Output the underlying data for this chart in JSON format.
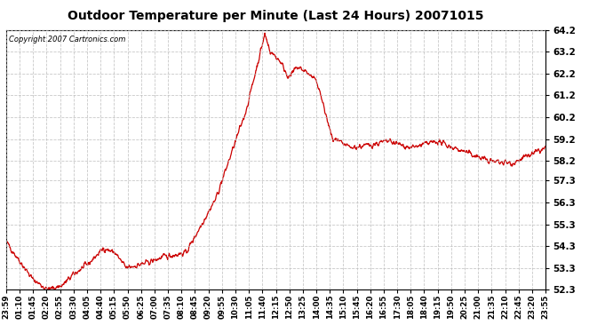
{
  "title": "Outdoor Temperature per Minute (Last 24 Hours) 20071015",
  "copyright_text": "Copyright 2007 Cartronics.com",
  "line_color": "#cc0000",
  "background_color": "#ffffff",
  "plot_bg_color": "#ffffff",
  "grid_color": "#bbbbbb",
  "ylim": [
    52.3,
    64.2
  ],
  "yticks": [
    52.3,
    53.3,
    54.3,
    55.3,
    56.3,
    57.3,
    58.2,
    59.2,
    60.2,
    61.2,
    62.2,
    63.2,
    64.2
  ],
  "xtick_labels": [
    "23:59",
    "01:10",
    "01:45",
    "02:20",
    "02:55",
    "03:30",
    "04:05",
    "04:40",
    "05:15",
    "05:50",
    "06:25",
    "07:00",
    "07:35",
    "08:10",
    "08:45",
    "09:20",
    "09:55",
    "10:30",
    "11:05",
    "11:40",
    "12:15",
    "12:50",
    "13:25",
    "14:00",
    "14:35",
    "15:10",
    "15:45",
    "16:20",
    "16:55",
    "17:30",
    "18:05",
    "18:40",
    "19:15",
    "19:50",
    "20:25",
    "21:00",
    "21:35",
    "22:10",
    "22:45",
    "23:20",
    "23:55"
  ],
  "key_times": [
    0,
    70,
    110,
    150,
    180,
    220,
    260,
    290,
    320,
    370,
    420,
    480,
    560,
    640,
    690,
    705,
    730,
    755,
    775,
    800,
    830,
    870,
    920,
    960,
    1020,
    1080,
    1150,
    1210,
    1290,
    1350,
    1440
  ],
  "key_vals": [
    54.5,
    52.8,
    52.3,
    52.5,
    53.0,
    53.5,
    54.2,
    54.0,
    53.3,
    53.5,
    53.8,
    54.0,
    56.5,
    60.5,
    64.0,
    63.2,
    62.8,
    62.0,
    62.5,
    62.3,
    61.8,
    59.2,
    58.8,
    58.9,
    59.1,
    58.8,
    59.1,
    58.7,
    58.2,
    58.1,
    58.8
  ],
  "noise_std": 0.12,
  "n_points": 1440,
  "seed": 42
}
